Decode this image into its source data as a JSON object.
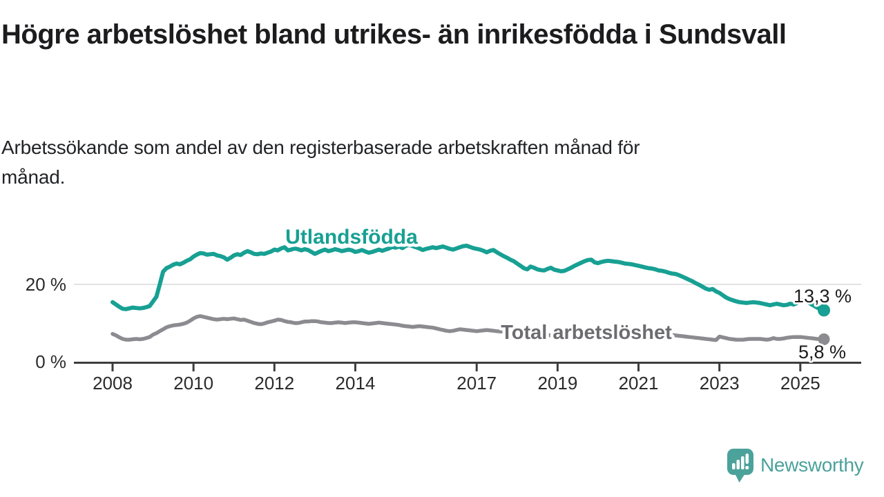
{
  "header": {
    "title": "Högre arbetslöshet bland utrikes- än inrikesfödda i Sundsvall",
    "subtitle": "Arbetssökande som andel av den registerbaserade arbetskraften månad för månad."
  },
  "branding": {
    "name": "Newsworthy",
    "logo_icon": "speech-bubble-bar-chart-icon",
    "color": "#4BA29B"
  },
  "colors": {
    "foreign_born_line": "#17A093",
    "total_line": "#8B8B90",
    "total_label": "#6C6C71",
    "axis": "#3D3D3D",
    "gridline": "#D8D8D8",
    "tick_text": "#2B2B2B"
  },
  "chart_data": {
    "type": "line",
    "unit": "%",
    "frequency": "monthly",
    "x_start": "2008-01",
    "x_end": "2025-08",
    "ylim": [
      0,
      31
    ],
    "grid": "single-line-at-20",
    "legend_position": "inline-labels-on-lines",
    "y_ticks": [
      {
        "value": 20,
        "label": "20 %"
      },
      {
        "value": 0,
        "label": "0 %"
      }
    ],
    "x_ticks": [
      {
        "year": 2008,
        "label": "2008"
      },
      {
        "year": 2010,
        "label": "2010"
      },
      {
        "year": 2012,
        "label": "2012"
      },
      {
        "year": 2014,
        "label": "2014"
      },
      {
        "year": 2017,
        "label": "2017"
      },
      {
        "year": 2019,
        "label": "2019"
      },
      {
        "year": 2021,
        "label": "2021"
      },
      {
        "year": 2023,
        "label": "2023"
      },
      {
        "year": 2025,
        "label": "2025"
      }
    ],
    "series": [
      {
        "name": "Utlandsfödda",
        "color": "#17A093",
        "end_label": "13,3 %",
        "end_value": 13.3,
        "values": [
          15.4,
          14.8,
          14.2,
          13.7,
          13.6,
          13.8,
          14.0,
          13.9,
          13.8,
          13.9,
          14.1,
          14.4,
          15.6,
          16.8,
          20.0,
          23.3,
          24.2,
          24.6,
          25.1,
          25.4,
          25.2,
          25.6,
          26.1,
          26.5,
          27.2,
          27.7,
          28.1,
          28.0,
          27.7,
          27.8,
          27.9,
          27.5,
          27.3,
          27.0,
          26.4,
          26.9,
          27.5,
          27.8,
          27.6,
          28.2,
          28.6,
          28.3,
          27.9,
          27.8,
          28.0,
          27.9,
          28.2,
          28.5,
          29.0,
          28.8,
          29.3,
          29.6,
          28.8,
          29.0,
          29.3,
          29.1,
          28.8,
          29.1,
          28.9,
          28.4,
          27.9,
          28.3,
          28.7,
          29.0,
          28.6,
          28.8,
          29.1,
          28.9,
          28.6,
          28.8,
          29.0,
          28.8,
          28.4,
          28.6,
          28.9,
          28.5,
          28.2,
          28.4,
          28.7,
          29.0,
          28.7,
          29.0,
          29.3,
          29.7,
          29.5,
          29.8,
          29.4,
          30.0,
          30.2,
          29.9,
          29.6,
          29.3,
          28.9,
          29.2,
          29.4,
          29.6,
          29.4,
          29.6,
          29.8,
          29.5,
          29.2,
          29.0,
          29.3,
          29.6,
          29.9,
          30.0,
          29.7,
          29.4,
          29.2,
          29.0,
          28.7,
          28.3,
          28.7,
          28.9,
          28.3,
          27.8,
          27.3,
          26.9,
          26.4,
          26.0,
          25.4,
          24.8,
          24.2,
          23.9,
          24.6,
          24.3,
          23.9,
          23.7,
          23.6,
          24.0,
          24.3,
          23.8,
          23.6,
          23.4,
          23.5,
          23.9,
          24.3,
          24.8,
          25.2,
          25.6,
          26.0,
          26.3,
          26.4,
          25.7,
          25.5,
          25.8,
          26.0,
          26.1,
          26.0,
          25.9,
          25.8,
          25.6,
          25.4,
          25.3,
          25.2,
          25.0,
          24.8,
          24.6,
          24.4,
          24.2,
          24.1,
          23.9,
          23.6,
          23.5,
          23.3,
          23.0,
          22.8,
          22.7,
          22.4,
          22.0,
          21.6,
          21.2,
          20.8,
          20.3,
          19.9,
          19.4,
          18.9,
          18.6,
          18.8,
          18.2,
          17.8,
          17.2,
          16.6,
          16.2,
          15.9,
          15.6,
          15.4,
          15.3,
          15.2,
          15.3,
          15.4,
          15.3,
          15.2,
          15.0,
          14.8,
          14.6,
          14.8,
          15.0,
          14.8,
          14.6,
          14.7,
          15.0,
          14.8,
          15.2,
          15.7,
          15.9,
          15.5,
          15.0,
          14.5,
          14.0,
          13.6,
          13.3
        ]
      },
      {
        "name": "Total arbetslöshet",
        "color": "#8B8B90",
        "end_label": "5,8 %",
        "end_value": 5.8,
        "values": [
          7.2,
          6.8,
          6.3,
          5.9,
          5.7,
          5.7,
          5.8,
          5.9,
          5.8,
          5.9,
          6.1,
          6.4,
          7.0,
          7.4,
          7.9,
          8.4,
          8.9,
          9.2,
          9.4,
          9.5,
          9.6,
          9.8,
          10.1,
          10.6,
          11.2,
          11.6,
          11.8,
          11.6,
          11.4,
          11.2,
          11.0,
          10.9,
          11.0,
          11.1,
          11.0,
          11.1,
          11.2,
          11.0,
          10.8,
          10.9,
          10.6,
          10.3,
          10.0,
          9.8,
          9.7,
          9.9,
          10.2,
          10.4,
          10.6,
          10.9,
          10.8,
          10.5,
          10.3,
          10.2,
          10.0,
          10.0,
          10.2,
          10.4,
          10.4,
          10.5,
          10.5,
          10.4,
          10.2,
          10.1,
          10.0,
          10.0,
          10.1,
          10.2,
          10.1,
          10.0,
          10.1,
          10.2,
          10.2,
          10.1,
          10.0,
          9.9,
          9.8,
          9.9,
          10.0,
          10.1,
          10.0,
          9.9,
          9.8,
          9.7,
          9.6,
          9.5,
          9.3,
          9.2,
          9.1,
          9.0,
          9.1,
          9.2,
          9.1,
          9.0,
          8.9,
          8.8,
          8.6,
          8.4,
          8.2,
          8.0,
          7.9,
          8.0,
          8.2,
          8.4,
          8.3,
          8.2,
          8.1,
          8.0,
          7.9,
          8.0,
          8.1,
          8.2,
          8.1,
          8.0,
          7.9,
          7.8,
          7.8,
          7.7,
          7.7,
          7.6,
          7.5,
          7.4,
          7.3,
          7.2,
          7.2,
          7.1,
          7.0,
          7.0,
          6.9,
          6.9,
          6.8,
          6.8,
          6.8,
          6.9,
          7.0,
          7.0,
          7.1,
          7.1,
          7.2,
          7.2,
          7.1,
          7.2,
          7.3,
          7.4,
          7.6,
          7.9,
          8.3,
          8.6,
          8.8,
          8.9,
          8.8,
          8.7,
          8.5,
          8.3,
          8.1,
          8.0,
          7.9,
          7.8,
          7.6,
          7.4,
          7.2,
          7.1,
          7.0,
          6.9,
          6.8,
          6.8,
          6.9,
          6.8,
          6.7,
          6.6,
          6.5,
          6.4,
          6.3,
          6.2,
          6.1,
          6.0,
          5.9,
          5.8,
          5.7,
          5.6,
          6.5,
          6.3,
          6.1,
          5.9,
          5.8,
          5.7,
          5.7,
          5.7,
          5.8,
          5.9,
          5.9,
          5.9,
          5.9,
          5.8,
          5.7,
          5.8,
          6.1,
          5.9,
          5.9,
          6.0,
          6.2,
          6.3,
          6.4,
          6.4,
          6.4,
          6.3,
          6.2,
          6.1,
          6.0,
          5.9,
          5.8,
          5.8
        ]
      }
    ]
  }
}
